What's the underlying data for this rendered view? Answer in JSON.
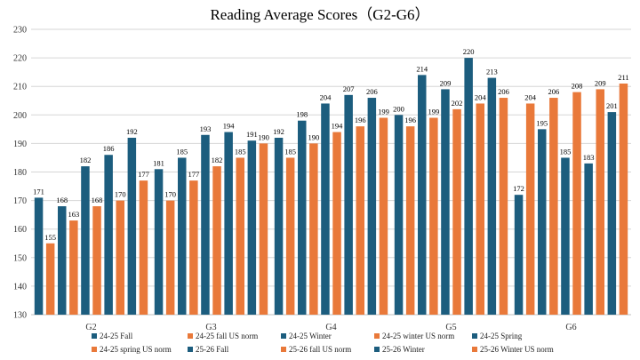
{
  "chart_data": {
    "type": "bar",
    "title": "Reading Average Scores（G2-G6）",
    "xlabel": "",
    "ylabel": "",
    "ylim": [
      130,
      230
    ],
    "yticks": [
      130,
      140,
      150,
      160,
      170,
      180,
      190,
      200,
      210,
      220,
      230
    ],
    "grid": true,
    "legend_position": "bottom",
    "categories": [
      "G2",
      "G3",
      "G4",
      "G5",
      "G6"
    ],
    "colors": {
      "dark": "#1c5d7e",
      "orange": "#e9793a"
    },
    "series": [
      {
        "name": "24-25 Fall",
        "color": "#1c5d7e",
        "values": [
          171,
          181,
          192,
          200,
          172
        ]
      },
      {
        "name": "24-25 fall US norm",
        "color": "#e9793a",
        "values": [
          155,
          170,
          185,
          196,
          204
        ]
      },
      {
        "name": "24-25 Winter",
        "color": "#1c5d7e",
        "values": [
          168,
          185,
          198,
          214,
          195
        ]
      },
      {
        "name": "24-25 winter US norm",
        "color": "#e9793a",
        "values": [
          163,
          177,
          190,
          199,
          206
        ]
      },
      {
        "name": "24-25 Spring",
        "color": "#1c5d7e",
        "values": [
          182,
          193,
          204,
          209,
          185
        ]
      },
      {
        "name": "24-25 spring US norm",
        "color": "#e9793a",
        "values": [
          168,
          182,
          194,
          202,
          208
        ]
      },
      {
        "name": "25-26 Fall",
        "color": "#1c5d7e",
        "values": [
          186,
          194,
          207,
          220,
          183
        ]
      },
      {
        "name": "25-26 fall US norm",
        "color": "#e9793a",
        "values": [
          170,
          185,
          196,
          204,
          209
        ]
      },
      {
        "name": "25-26 Winter",
        "color": "#1c5d7e",
        "values": [
          192,
          191,
          206,
          213,
          201
        ]
      },
      {
        "name": "25-26 Winter US norm",
        "color": "#e9793a",
        "values": [
          177,
          190,
          199,
          206,
          211
        ]
      }
    ]
  }
}
